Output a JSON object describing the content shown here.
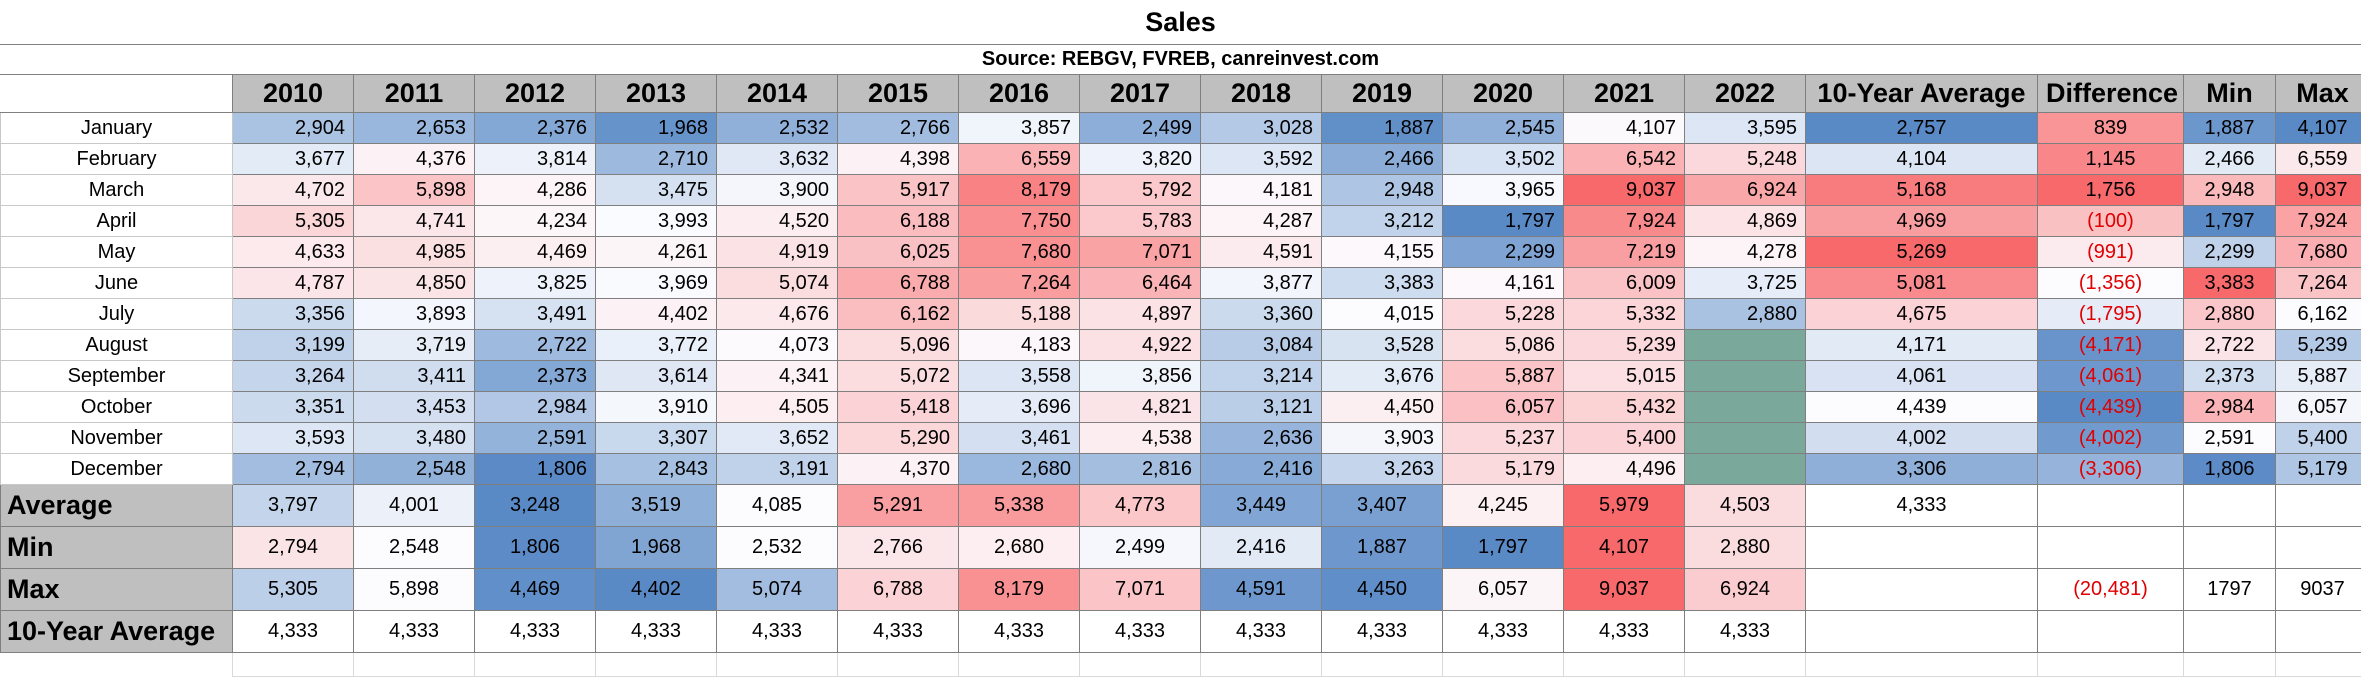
{
  "title": "Sales",
  "source": "Source: REBGV, FVREB, canreinvest.com",
  "chart_data": {
    "type": "table",
    "title": "Sales",
    "subtitle": "Source: REBGV, FVREB, canreinvest.com",
    "years": [
      "2010",
      "2011",
      "2012",
      "2013",
      "2014",
      "2015",
      "2016",
      "2017",
      "2018",
      "2019",
      "2020",
      "2021",
      "2022"
    ],
    "extra_headers": [
      "10-Year Average",
      "Difference",
      "Min",
      "Max"
    ],
    "months": [
      {
        "label": "January",
        "values": [
          "2,904",
          "2,653",
          "2,376",
          "1,968",
          "2,532",
          "2,766",
          "3,857",
          "2,499",
          "3,028",
          "1,887",
          "2,545",
          "4,107",
          "3,595"
        ],
        "avg": "2,757",
        "diff": "839",
        "min": "1,887",
        "max": "4,107"
      },
      {
        "label": "February",
        "values": [
          "3,677",
          "4,376",
          "3,814",
          "2,710",
          "3,632",
          "4,398",
          "6,559",
          "3,820",
          "3,592",
          "2,466",
          "3,502",
          "6,542",
          "5,248"
        ],
        "avg": "4,104",
        "diff": "1,145",
        "min": "2,466",
        "max": "6,559"
      },
      {
        "label": "March",
        "values": [
          "4,702",
          "5,898",
          "4,286",
          "3,475",
          "3,900",
          "5,917",
          "8,179",
          "5,792",
          "4,181",
          "2,948",
          "3,965",
          "9,037",
          "6,924"
        ],
        "avg": "5,168",
        "diff": "1,756",
        "min": "2,948",
        "max": "9,037"
      },
      {
        "label": "April",
        "values": [
          "5,305",
          "4,741",
          "4,234",
          "3,993",
          "4,520",
          "6,188",
          "7,750",
          "5,783",
          "4,287",
          "3,212",
          "1,797",
          "7,924",
          "4,869"
        ],
        "avg": "4,969",
        "diff": "(100)",
        "min": "1,797",
        "max": "7,924"
      },
      {
        "label": "May",
        "values": [
          "4,633",
          "4,985",
          "4,469",
          "4,261",
          "4,919",
          "6,025",
          "7,680",
          "7,071",
          "4,591",
          "4,155",
          "2,299",
          "7,219",
          "4,278"
        ],
        "avg": "5,269",
        "diff": "(991)",
        "min": "2,299",
        "max": "7,680"
      },
      {
        "label": "June",
        "values": [
          "4,787",
          "4,850",
          "3,825",
          "3,969",
          "5,074",
          "6,788",
          "7,264",
          "6,464",
          "3,877",
          "3,383",
          "4,161",
          "6,009",
          "3,725"
        ],
        "avg": "5,081",
        "diff": "(1,356)",
        "min": "3,383",
        "max": "7,264"
      },
      {
        "label": "July",
        "values": [
          "3,356",
          "3,893",
          "3,491",
          "4,402",
          "4,676",
          "6,162",
          "5,188",
          "4,897",
          "3,360",
          "4,015",
          "5,228",
          "5,332",
          "2,880"
        ],
        "avg": "4,675",
        "diff": "(1,795)",
        "min": "2,880",
        "max": "6,162"
      },
      {
        "label": "August",
        "values": [
          "3,199",
          "3,719",
          "2,722",
          "3,772",
          "4,073",
          "5,096",
          "4,183",
          "4,922",
          "3,084",
          "3,528",
          "5,086",
          "5,239",
          ""
        ],
        "avg": "4,171",
        "diff": "(4,171)",
        "min": "2,722",
        "max": "5,239"
      },
      {
        "label": "September",
        "values": [
          "3,264",
          "3,411",
          "2,373",
          "3,614",
          "4,341",
          "5,072",
          "3,558",
          "3,856",
          "3,214",
          "3,676",
          "5,887",
          "5,015",
          ""
        ],
        "avg": "4,061",
        "diff": "(4,061)",
        "min": "2,373",
        "max": "5,887"
      },
      {
        "label": "October",
        "values": [
          "3,351",
          "3,453",
          "2,984",
          "3,910",
          "4,505",
          "5,418",
          "3,696",
          "4,821",
          "3,121",
          "4,450",
          "6,057",
          "5,432",
          ""
        ],
        "avg": "4,439",
        "diff": "(4,439)",
        "min": "2,984",
        "max": "6,057"
      },
      {
        "label": "November",
        "values": [
          "3,593",
          "3,480",
          "2,591",
          "3,307",
          "3,652",
          "5,290",
          "3,461",
          "4,538",
          "2,636",
          "3,903",
          "5,237",
          "5,400",
          ""
        ],
        "avg": "4,002",
        "diff": "(4,002)",
        "min": "2,591",
        "max": "5,400"
      },
      {
        "label": "December",
        "values": [
          "2,794",
          "2,548",
          "1,806",
          "2,843",
          "3,191",
          "4,370",
          "2,680",
          "2,816",
          "2,416",
          "3,263",
          "5,179",
          "4,496",
          ""
        ],
        "avg": "3,306",
        "diff": "(3,306)",
        "min": "1,806",
        "max": "5,179"
      }
    ],
    "summary_rows": [
      {
        "label": "Average",
        "values": [
          "3,797",
          "4,001",
          "3,248",
          "3,519",
          "4,085",
          "5,291",
          "5,338",
          "4,773",
          "3,449",
          "3,407",
          "4,245",
          "5,979",
          "4,503"
        ],
        "avg": "4,333",
        "diff": "",
        "min": "",
        "max": ""
      },
      {
        "label": "Min",
        "values": [
          "2,794",
          "2,548",
          "1,806",
          "1,968",
          "2,532",
          "2,766",
          "2,680",
          "2,499",
          "2,416",
          "1,887",
          "1,797",
          "4,107",
          "2,880"
        ],
        "avg": "",
        "diff": "",
        "min": "",
        "max": ""
      },
      {
        "label": "Max",
        "values": [
          "5,305",
          "5,898",
          "4,469",
          "4,402",
          "5,074",
          "6,788",
          "8,179",
          "7,071",
          "4,591",
          "4,450",
          "6,057",
          "9,037",
          "6,924"
        ],
        "avg": "",
        "diff": "(20,481)",
        "min": "1797",
        "max": "9037"
      },
      {
        "label": "10-Year Average",
        "values": [
          "4,333",
          "4,333",
          "4,333",
          "4,333",
          "4,333",
          "4,333",
          "4,333",
          "4,333",
          "4,333",
          "4,333",
          "4,333",
          "4,333",
          "4,333"
        ],
        "avg": "",
        "diff": "",
        "min": "",
        "max": ""
      }
    ],
    "colors": {
      "header_gray": "#bfbfbf",
      "low_blue": "#5a8ac6",
      "mid_white": "#fcfcff",
      "high_red": "#f8696b",
      "empty_fill": "#7aa99b",
      "negative_text": "#e00000"
    }
  }
}
